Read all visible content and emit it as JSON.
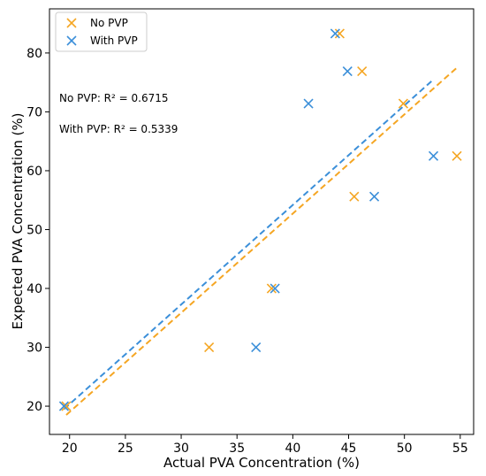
{
  "chart_data": {
    "type": "scatter",
    "title": "",
    "xlabel": "Actual PVA Concentration (%)",
    "ylabel": "Expected PVA Concentration (%)",
    "xlim": [
      18.2,
      56.2
    ],
    "ylim": [
      15.2,
      87.5
    ],
    "xticks": [
      20,
      25,
      30,
      35,
      40,
      45,
      50,
      55
    ],
    "yticks": [
      20,
      30,
      40,
      50,
      60,
      70,
      80
    ],
    "grid": false,
    "legend_position": "top-left",
    "series": [
      {
        "name": "No PVP",
        "color": "#f5a623",
        "marker": "x",
        "points": [
          {
            "x": 19.7,
            "y": 20
          },
          {
            "x": 32.5,
            "y": 30
          },
          {
            "x": 38.1,
            "y": 40
          },
          {
            "x": 45.5,
            "y": 55.6
          },
          {
            "x": 54.7,
            "y": 62.5
          },
          {
            "x": 49.9,
            "y": 71.4
          },
          {
            "x": 46.2,
            "y": 76.9
          },
          {
            "x": 44.2,
            "y": 83.3
          }
        ],
        "trendline": {
          "x": [
            19.7,
            54.7
          ],
          "y": [
            18.5,
            77.5
          ],
          "style": "dashed"
        }
      },
      {
        "name": "With PVP",
        "color": "#3b8fd9",
        "marker": "x",
        "points": [
          {
            "x": 19.5,
            "y": 20
          },
          {
            "x": 36.7,
            "y": 30
          },
          {
            "x": 38.4,
            "y": 40
          },
          {
            "x": 47.3,
            "y": 55.6
          },
          {
            "x": 52.6,
            "y": 62.5
          },
          {
            "x": 41.4,
            "y": 71.4
          },
          {
            "x": 44.9,
            "y": 76.9
          },
          {
            "x": 43.8,
            "y": 83.3
          }
        ],
        "trendline": {
          "x": [
            19.5,
            52.6
          ],
          "y": [
            19.5,
            75.5
          ],
          "style": "dashed"
        }
      }
    ],
    "annotations": [
      {
        "text": "No PVP: R² = 0.6715"
      },
      {
        "text": "With PVP: R² = 0.5339"
      }
    ]
  }
}
